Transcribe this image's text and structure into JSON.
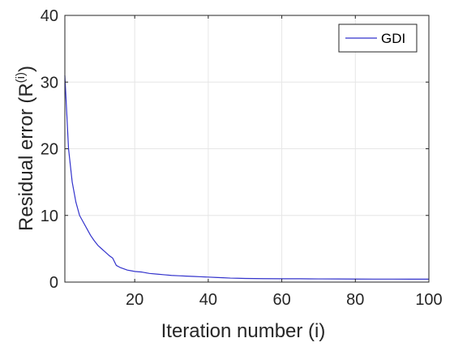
{
  "chart_data": {
    "type": "line",
    "xlabel": "Iteration number (i)",
    "ylabel": {
      "base": "Residual error (R",
      "superscript": "(i)",
      "closing": ")"
    },
    "xlim": [
      1,
      100
    ],
    "ylim": [
      0,
      40
    ],
    "xticks": [
      20,
      40,
      60,
      80,
      100
    ],
    "yticks": [
      0,
      10,
      20,
      30,
      40
    ],
    "xtick_labels": [
      "20",
      "40",
      "60",
      "80",
      "100"
    ],
    "ytick_labels": [
      "0",
      "10",
      "20",
      "30",
      "40"
    ],
    "grid": true,
    "legend_position": "top-right",
    "colors": {
      "series": "#3333cc",
      "grid": "#e6e6e6",
      "axis": "#262626"
    },
    "series": [
      {
        "name": "GDI",
        "x": [
          1,
          2,
          3,
          4,
          5,
          6,
          7,
          8,
          9,
          10,
          11,
          12,
          13,
          14,
          15,
          16,
          17,
          18,
          19,
          20,
          22,
          24,
          26,
          28,
          30,
          32,
          34,
          36,
          38,
          40,
          42,
          44,
          46,
          48,
          50,
          55,
          60,
          65,
          70,
          75,
          80,
          85,
          90,
          95,
          100
        ],
        "values": [
          31,
          20,
          15,
          12,
          10,
          9,
          8,
          7,
          6.2,
          5.5,
          5,
          4.5,
          4,
          3.6,
          2.5,
          2.2,
          2.0,
          1.8,
          1.7,
          1.6,
          1.5,
          1.3,
          1.2,
          1.1,
          1.0,
          0.95,
          0.9,
          0.85,
          0.8,
          0.75,
          0.7,
          0.65,
          0.6,
          0.58,
          0.55,
          0.52,
          0.5,
          0.5,
          0.48,
          0.47,
          0.46,
          0.45,
          0.45,
          0.44,
          0.44
        ]
      }
    ]
  }
}
